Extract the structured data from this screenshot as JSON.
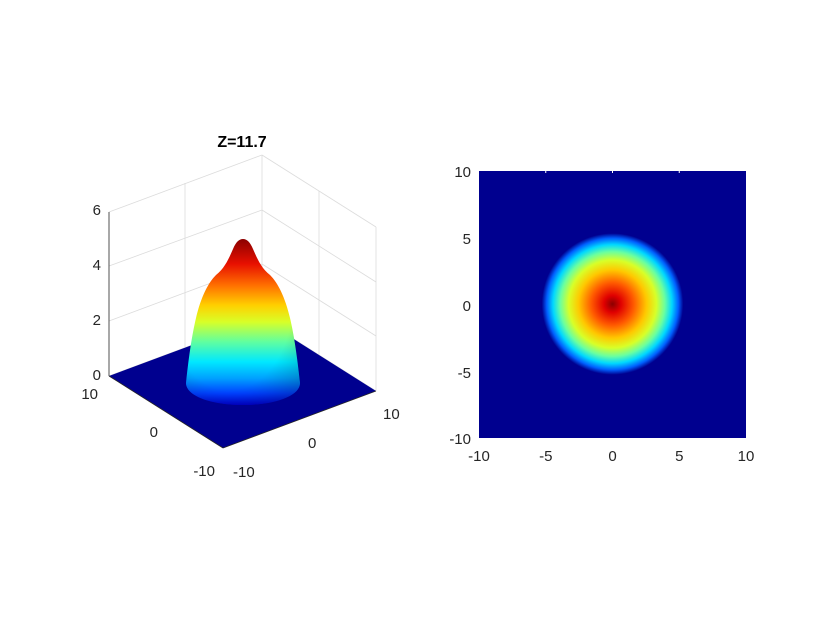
{
  "figure": {
    "background": "#ffffff"
  },
  "chart_data": [
    {
      "type": "surface",
      "title": "Z=11.7",
      "xlabel": "",
      "ylabel": "",
      "zlabel": "",
      "xlim": [
        -10,
        10
      ],
      "ylim": [
        -10,
        10
      ],
      "zlim": [
        0,
        6
      ],
      "x_ticks": [
        "-10",
        "0",
        "10"
      ],
      "y_ticks": [
        "-10",
        "0",
        "10"
      ],
      "z_ticks": [
        "0",
        "2",
        "4",
        "6"
      ],
      "grid": true,
      "colormap": "jet",
      "surface": {
        "peak": 4.9,
        "peak_at": [
          0,
          0
        ],
        "plateau_radius": 2.2,
        "edge_radius": 5.3,
        "base": 0
      }
    },
    {
      "type": "heatmap",
      "title": "",
      "xlabel": "",
      "ylabel": "",
      "xlim": [
        -10,
        10
      ],
      "ylim": [
        -10,
        10
      ],
      "x_ticks": [
        "-10",
        "-5",
        "0",
        "5",
        "10"
      ],
      "y_ticks": [
        "10",
        "5",
        "0",
        "-5",
        "-10"
      ],
      "colormap": "jet",
      "center": [
        0,
        0
      ],
      "radius": 5.3,
      "background_color": "#00008f"
    }
  ]
}
